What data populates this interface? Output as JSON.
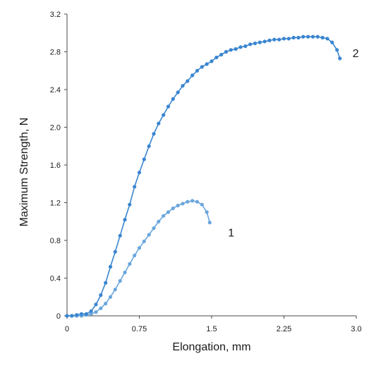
{
  "chart_data": {
    "type": "line",
    "title": "",
    "xlabel": "Elongation, mm",
    "ylabel": "Maximum Strength, N",
    "xlim": [
      0,
      3.0
    ],
    "ylim": [
      0,
      3.2
    ],
    "x_ticks": [
      {
        "value": 0,
        "label": "0"
      },
      {
        "value": 0.75,
        "label": "0.75"
      },
      {
        "value": 1.5,
        "label": "1.5"
      },
      {
        "value": 2.25,
        "label": "2.25"
      },
      {
        "value": 3.0,
        "label": "3.0"
      }
    ],
    "y_ticks": [
      {
        "value": 0,
        "label": "0"
      },
      {
        "value": 0.4,
        "label": "0.4"
      },
      {
        "value": 0.8,
        "label": "0.8"
      },
      {
        "value": 1.2,
        "label": "1.2"
      },
      {
        "value": 1.6,
        "label": "1.6"
      },
      {
        "value": 2.0,
        "label": "2.0"
      },
      {
        "value": 2.4,
        "label": "2.4"
      },
      {
        "value": 2.8,
        "label": "2.8"
      },
      {
        "value": 3.2,
        "label": "3.2"
      }
    ],
    "grid": false,
    "legend": "none",
    "series": [
      {
        "label": "1",
        "color": "#6aa6dc",
        "points": [
          [
            0.0,
            0.0
          ],
          [
            0.05,
            0.0
          ],
          [
            0.1,
            0.0
          ],
          [
            0.15,
            0.0
          ],
          [
            0.2,
            0.01
          ],
          [
            0.25,
            0.02
          ],
          [
            0.3,
            0.04
          ],
          [
            0.35,
            0.08
          ],
          [
            0.4,
            0.13
          ],
          [
            0.45,
            0.2
          ],
          [
            0.5,
            0.28
          ],
          [
            0.55,
            0.37
          ],
          [
            0.6,
            0.46
          ],
          [
            0.65,
            0.55
          ],
          [
            0.7,
            0.64
          ],
          [
            0.75,
            0.72
          ],
          [
            0.8,
            0.79
          ],
          [
            0.85,
            0.86
          ],
          [
            0.9,
            0.93
          ],
          [
            0.95,
            1.0
          ],
          [
            1.0,
            1.06
          ],
          [
            1.05,
            1.1
          ],
          [
            1.1,
            1.14
          ],
          [
            1.15,
            1.17
          ],
          [
            1.2,
            1.19
          ],
          [
            1.25,
            1.21
          ],
          [
            1.3,
            1.22
          ],
          [
            1.35,
            1.21
          ],
          [
            1.4,
            1.18
          ],
          [
            1.45,
            1.1
          ],
          [
            1.48,
            0.99
          ]
        ]
      },
      {
        "label": "2",
        "color": "#3a85d0",
        "points": [
          [
            0.0,
            0.0
          ],
          [
            0.05,
            0.0
          ],
          [
            0.1,
            0.01
          ],
          [
            0.15,
            0.02
          ],
          [
            0.2,
            0.02
          ],
          [
            0.25,
            0.05
          ],
          [
            0.3,
            0.12
          ],
          [
            0.35,
            0.22
          ],
          [
            0.4,
            0.35
          ],
          [
            0.45,
            0.52
          ],
          [
            0.5,
            0.68
          ],
          [
            0.55,
            0.85
          ],
          [
            0.6,
            1.02
          ],
          [
            0.65,
            1.18
          ],
          [
            0.7,
            1.37
          ],
          [
            0.75,
            1.52
          ],
          [
            0.8,
            1.66
          ],
          [
            0.85,
            1.8
          ],
          [
            0.9,
            1.93
          ],
          [
            0.95,
            2.04
          ],
          [
            1.0,
            2.13
          ],
          [
            1.05,
            2.22
          ],
          [
            1.1,
            2.3
          ],
          [
            1.15,
            2.37
          ],
          [
            1.2,
            2.44
          ],
          [
            1.25,
            2.49
          ],
          [
            1.3,
            2.55
          ],
          [
            1.35,
            2.6
          ],
          [
            1.4,
            2.64
          ],
          [
            1.45,
            2.67
          ],
          [
            1.5,
            2.7
          ],
          [
            1.55,
            2.74
          ],
          [
            1.6,
            2.77
          ],
          [
            1.65,
            2.8
          ],
          [
            1.7,
            2.82
          ],
          [
            1.75,
            2.83
          ],
          [
            1.8,
            2.85
          ],
          [
            1.85,
            2.86
          ],
          [
            1.9,
            2.88
          ],
          [
            1.95,
            2.89
          ],
          [
            2.0,
            2.9
          ],
          [
            2.05,
            2.91
          ],
          [
            2.1,
            2.92
          ],
          [
            2.15,
            2.93
          ],
          [
            2.2,
            2.93
          ],
          [
            2.25,
            2.94
          ],
          [
            2.3,
            2.94
          ],
          [
            2.35,
            2.95
          ],
          [
            2.4,
            2.95
          ],
          [
            2.45,
            2.96
          ],
          [
            2.5,
            2.96
          ],
          [
            2.55,
            2.96
          ],
          [
            2.6,
            2.96
          ],
          [
            2.65,
            2.95
          ],
          [
            2.7,
            2.94
          ],
          [
            2.75,
            2.9
          ],
          [
            2.8,
            2.82
          ],
          [
            2.83,
            2.73
          ]
        ]
      }
    ]
  }
}
